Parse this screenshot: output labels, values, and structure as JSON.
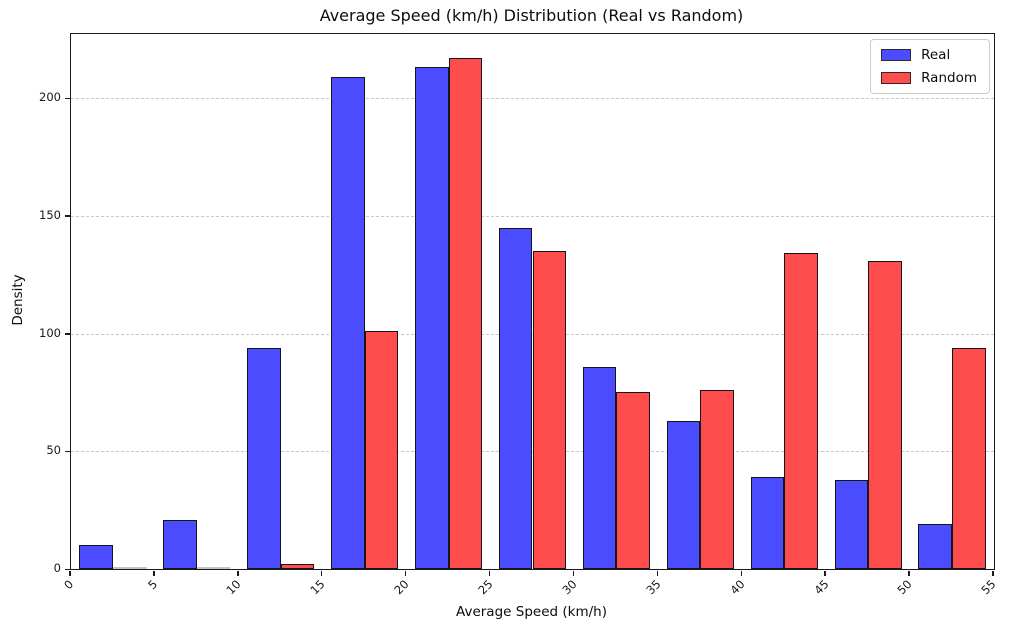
{
  "chart_data": {
    "type": "bar",
    "subtype": "histogram-grouped",
    "title": "Average Speed (km/h) Distribution (Real vs Random)",
    "xlabel": "Average Speed (km/h)",
    "ylabel": "Density",
    "bin_width": 5,
    "bin_starts": [
      0,
      5,
      10,
      15,
      20,
      25,
      30,
      35,
      40,
      45,
      50
    ],
    "categories": [
      "0-5",
      "5-10",
      "10-15",
      "15-20",
      "20-25",
      "25-30",
      "30-35",
      "35-40",
      "40-45",
      "45-50",
      "50-55"
    ],
    "series": [
      {
        "name": "Real",
        "color": "#4C4CFF",
        "values": [
          10,
          21,
          94,
          209,
          213,
          145,
          86,
          63,
          39,
          38,
          19
        ]
      },
      {
        "name": "Random",
        "color": "#FF4C4C",
        "values": [
          0,
          0,
          2,
          101,
          217,
          135,
          75,
          76,
          134,
          131,
          94
        ]
      }
    ],
    "edge_color": "#15151e",
    "xlim": [
      0,
      55
    ],
    "ylim": [
      0,
      227.2
    ],
    "xticks": [
      0,
      5,
      10,
      15,
      20,
      25,
      30,
      35,
      40,
      45,
      50,
      55
    ],
    "yticks": [
      0,
      50,
      100,
      150,
      200
    ],
    "grid": "horizontal-dashed",
    "grid_color": "#c9c9c9",
    "legend_position": "top-right",
    "x_tick_rotation_deg": 45
  }
}
